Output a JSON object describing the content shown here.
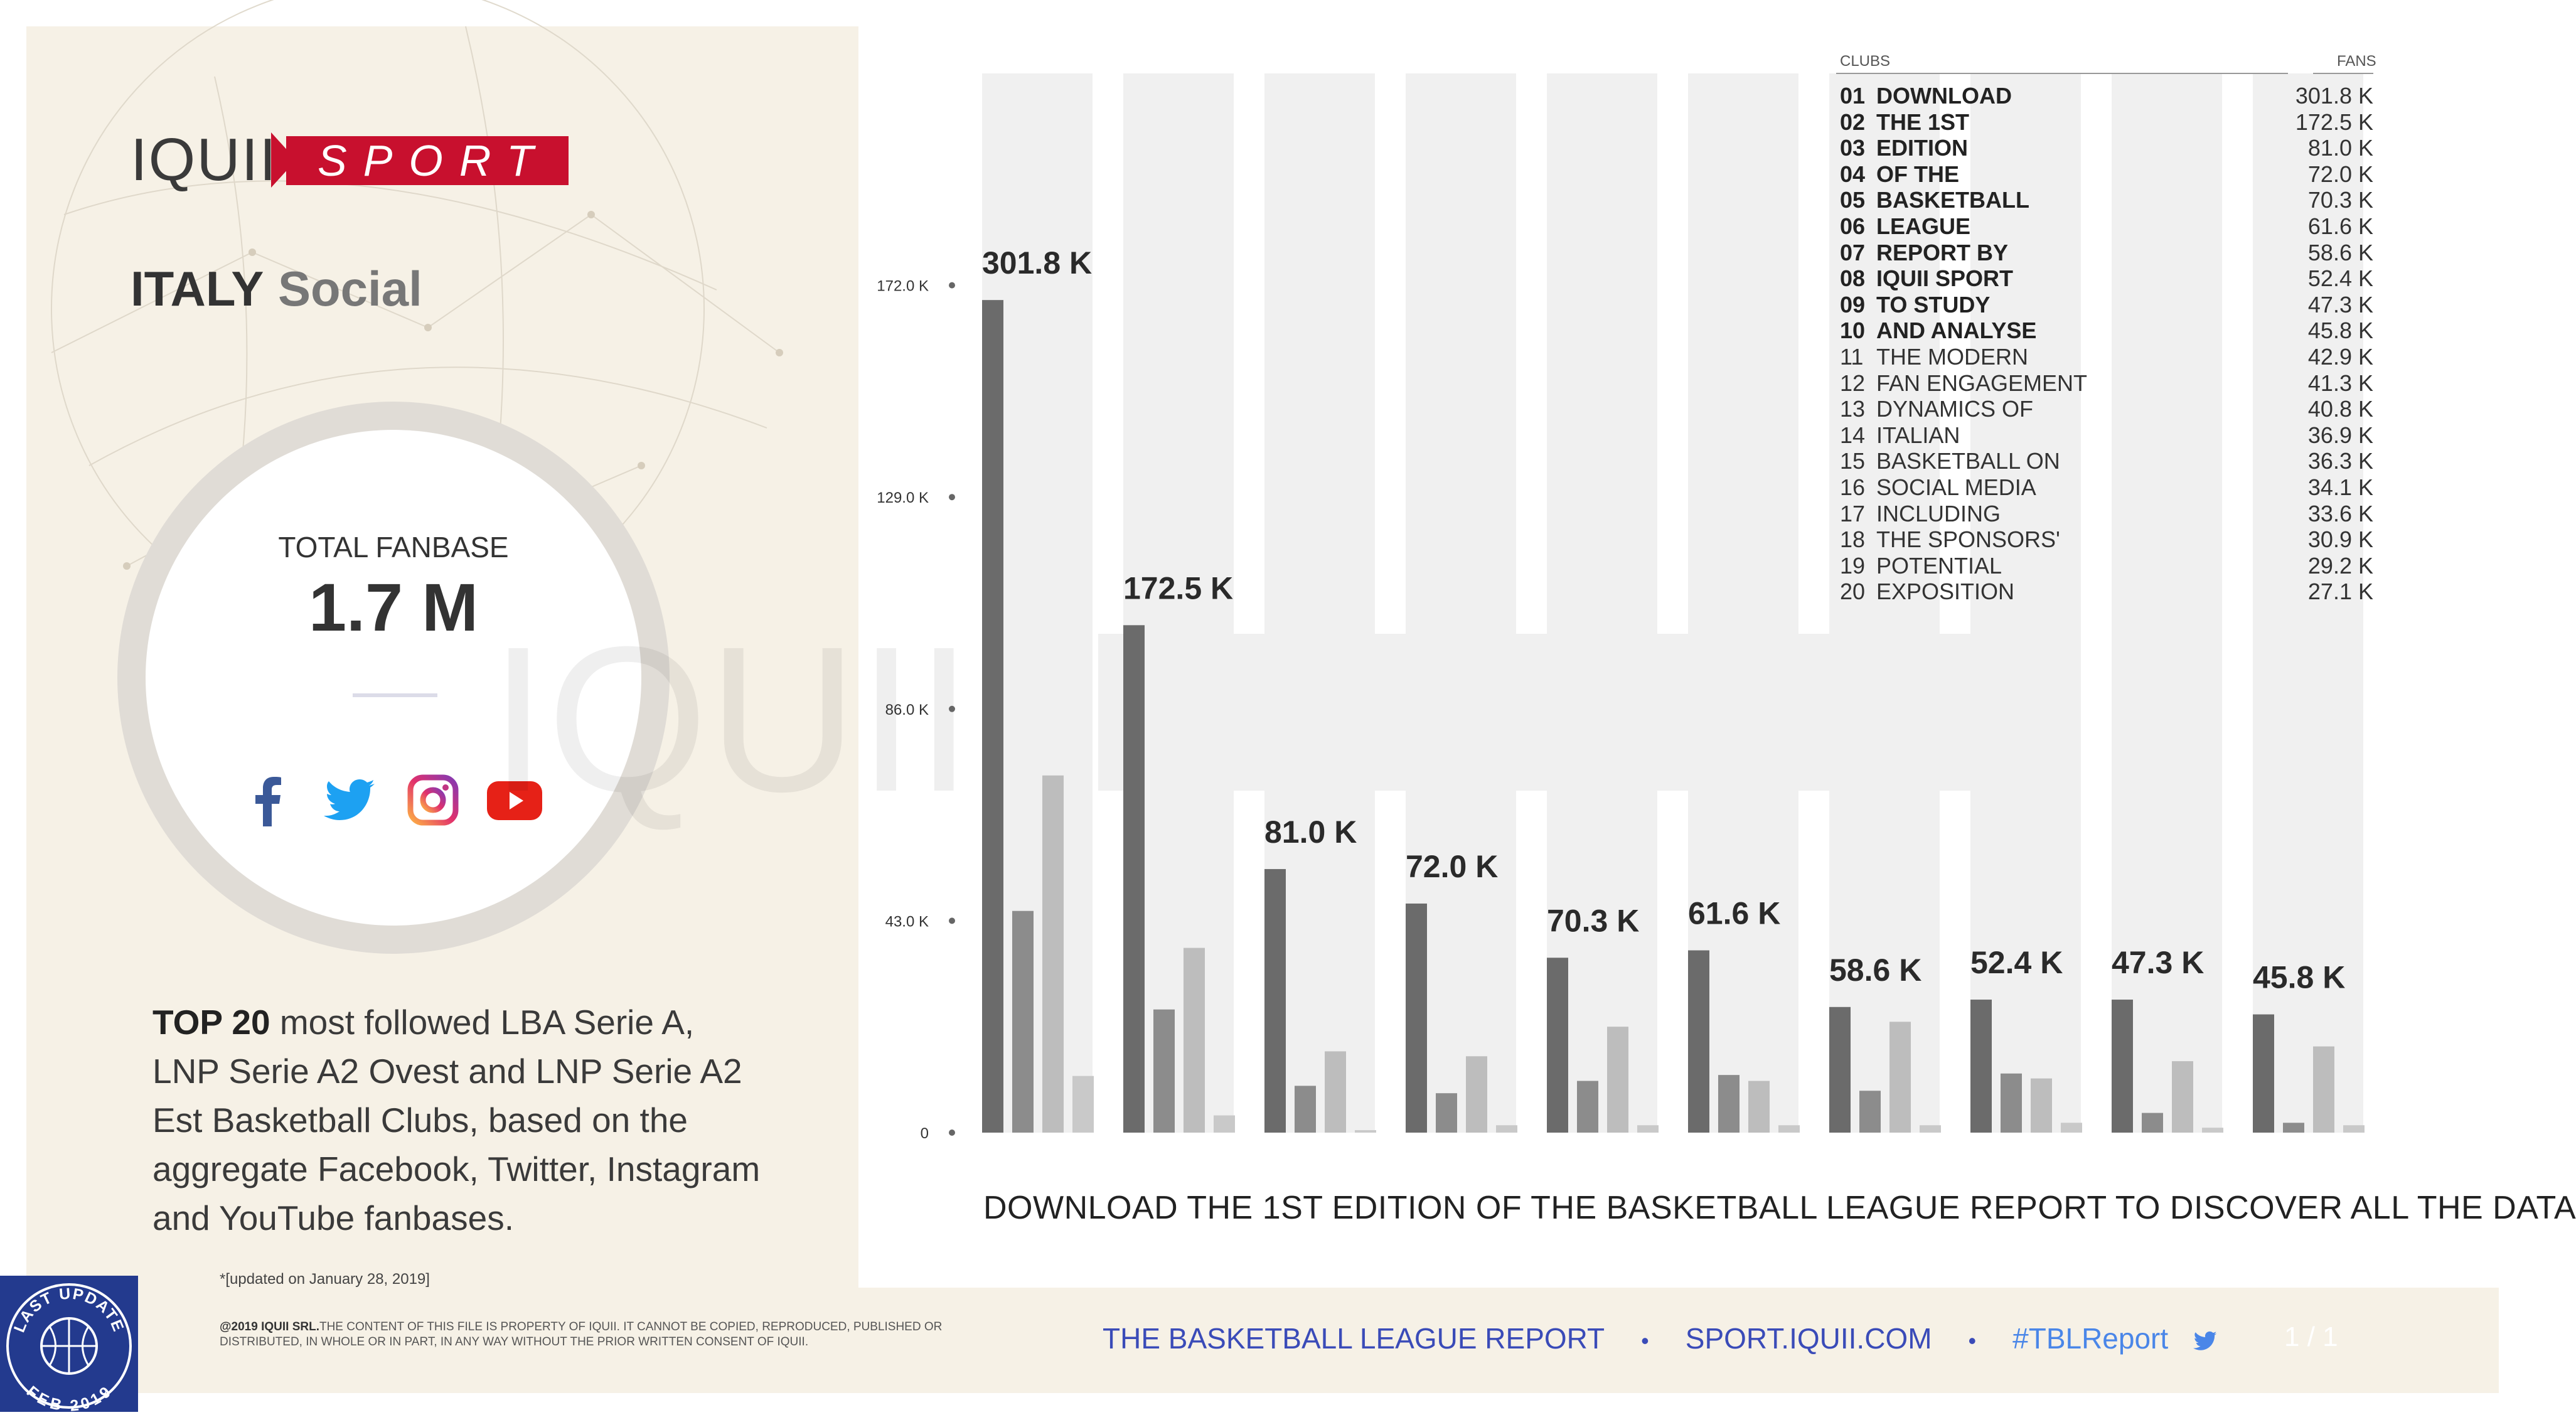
{
  "brand": {
    "logo_left": "IQUII",
    "logo_right": "SPORT",
    "accent_color": "#c8102e"
  },
  "header": {
    "country": "ITALY",
    "subtitle": "Social"
  },
  "summary": {
    "total_label": "TOTAL FANBASE",
    "total_value": "1.7 M"
  },
  "social_icons": [
    "facebook-icon",
    "twitter-icon",
    "instagram-icon",
    "youtube-icon"
  ],
  "description": {
    "bold": "TOP 20",
    "text": " most followed LBA Serie A, LNP Serie A2 Ovest and LNP Serie A2 Est Basketball Clubs, based on the aggregate Facebook, Twitter, Instagram and YouTube fanbases."
  },
  "updated_note": "*[updated on January 28, 2019]",
  "chart_data": {
    "type": "bar",
    "ylim": [
      0,
      215000
    ],
    "y_ticks": [
      0,
      43000,
      86000,
      129000,
      172000
    ],
    "y_tick_labels": [
      "0",
      "43.0 K",
      "86.0 K",
      "129.0 K",
      "172.0 K"
    ],
    "categories": [
      "01",
      "02",
      "03",
      "04",
      "05",
      "06",
      "07",
      "08",
      "09",
      "10"
    ],
    "total_labels": [
      "301.8 K",
      "172.5 K",
      "81.0 K",
      "72.0 K",
      "70.3 K",
      "61.6 K",
      "58.6 K",
      "52.4 K",
      "47.3 K",
      "45.8 K"
    ],
    "series": [
      {
        "color": "#6b6b6b",
        "values": [
          169000,
          103000,
          53500,
          46500,
          35500,
          37000,
          25500,
          27000,
          27000,
          24000
        ]
      },
      {
        "color": "#8c8c8c",
        "values": [
          45000,
          25000,
          9500,
          8000,
          10500,
          11700,
          8500,
          12000,
          4000,
          2000
        ]
      },
      {
        "color": "#bdbdbd",
        "values": [
          72500,
          37500,
          16500,
          15500,
          21500,
          10500,
          22500,
          11000,
          14500,
          17500
        ]
      },
      {
        "color": "#c9c9c9",
        "values": [
          11500,
          3500,
          500,
          1500,
          1500,
          1500,
          1500,
          2000,
          1000,
          1500
        ]
      }
    ]
  },
  "chart_note": "DOWNLOAD THE 1ST EDITION OF THE BASKETBALL LEAGUE REPORT TO DISCOVER ALL THE DATA",
  "legend": {
    "header_left": "CLUBS",
    "header_right": "FANS",
    "rows": [
      {
        "rank": "01",
        "name": "DOWNLOAD",
        "fans": "301.8 K",
        "bold": true
      },
      {
        "rank": "02",
        "name": "THE 1ST",
        "fans": "172.5 K",
        "bold": true
      },
      {
        "rank": "03",
        "name": "EDITION",
        "fans": "81.0 K",
        "bold": true
      },
      {
        "rank": "04",
        "name": "OF THE",
        "fans": "72.0 K",
        "bold": true
      },
      {
        "rank": "05",
        "name": "BASKETBALL",
        "fans": "70.3 K",
        "bold": true
      },
      {
        "rank": "06",
        "name": "LEAGUE",
        "fans": "61.6 K",
        "bold": true
      },
      {
        "rank": "07",
        "name": "REPORT BY",
        "fans": "58.6 K",
        "bold": true
      },
      {
        "rank": "08",
        "name": "IQUII SPORT",
        "fans": "52.4 K",
        "bold": true
      },
      {
        "rank": "09",
        "name": "TO STUDY",
        "fans": "47.3 K",
        "bold": true
      },
      {
        "rank": "10",
        "name": "AND ANALYSE",
        "fans": "45.8 K",
        "bold": true
      },
      {
        "rank": "11",
        "name": "THE MODERN",
        "fans": "42.9 K",
        "bold": false
      },
      {
        "rank": "12",
        "name": "FAN ENGAGEMENT",
        "fans": "41.3 K",
        "bold": false
      },
      {
        "rank": "13",
        "name": "DYNAMICS OF",
        "fans": "40.8 K",
        "bold": false
      },
      {
        "rank": "14",
        "name": "ITALIAN",
        "fans": "36.9 K",
        "bold": false
      },
      {
        "rank": "15",
        "name": "BASKETBALL ON",
        "fans": "36.3 K",
        "bold": false
      },
      {
        "rank": "16",
        "name": "SOCIAL MEDIA",
        "fans": "34.1 K",
        "bold": false
      },
      {
        "rank": "17",
        "name": "INCLUDING",
        "fans": "33.6 K",
        "bold": false
      },
      {
        "rank": "18",
        "name": "THE SPONSORS'",
        "fans": "30.9 K",
        "bold": false
      },
      {
        "rank": "19",
        "name": "POTENTIAL",
        "fans": "29.2 K",
        "bold": false
      },
      {
        "rank": "20",
        "name": "EXPOSITION",
        "fans": "27.1 K",
        "bold": false
      }
    ]
  },
  "footer": {
    "copyright_bold": "@2019 IQUII SRL.",
    "copyright_text": "THE CONTENT OF THIS FILE IS PROPERTY OF IQUII. IT CANNOT BE COPIED, REPRODUCED, PUBLISHED OR DISTRIBUTED, IN WHOLE OR IN PART, IN ANY WAY WITHOUT THE PRIOR WRITTEN CONSENT OF IQUII.",
    "link_report": "THE BASKETBALL LEAGUE REPORT",
    "link_site": "SPORT.IQUII.COM",
    "hashtag": "#TBLReport",
    "page_number": "1 / 1"
  },
  "badge": {
    "top_text": "LAST UPDATE",
    "bottom_text": "FEB 2019",
    "color": "#233a8e"
  }
}
